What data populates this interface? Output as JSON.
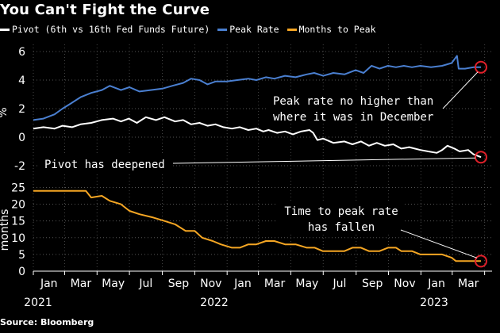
{
  "title": "You Can't Fight the Curve",
  "source": "Source: Bloomberg",
  "legend": [
    {
      "label": "Pivot (6th vs 16th Fed Funds Future)",
      "color": "#ffffff"
    },
    {
      "label": "Peak Rate",
      "color": "#4a7fd0"
    },
    {
      "label": "Months to Peak",
      "color": "#f5a623"
    }
  ],
  "chart_data": [
    {
      "type": "line",
      "panel": "top",
      "ylabel": "%",
      "ylim": [
        -2.5,
        6.5
      ],
      "yticks": [
        -2,
        0,
        2,
        4,
        6
      ],
      "x_start": "2021-01-01",
      "x_end": "2023-05-15",
      "series": [
        {
          "name": "Peak Rate",
          "color": "#4a7fd0",
          "points": [
            [
              "2021-01-01",
              1.2
            ],
            [
              "2021-01-20",
              1.3
            ],
            [
              "2021-02-10",
              1.6
            ],
            [
              "2021-02-25",
              2.0
            ],
            [
              "2021-03-10",
              2.3
            ],
            [
              "2021-03-31",
              2.8
            ],
            [
              "2021-04-20",
              3.1
            ],
            [
              "2021-05-10",
              3.3
            ],
            [
              "2021-05-25",
              3.6
            ],
            [
              "2021-06-15",
              3.3
            ],
            [
              "2021-07-01",
              3.5
            ],
            [
              "2021-07-20",
              3.2
            ],
            [
              "2021-08-10",
              3.3
            ],
            [
              "2021-09-01",
              3.4
            ],
            [
              "2021-09-20",
              3.6
            ],
            [
              "2021-10-10",
              3.8
            ],
            [
              "2021-10-25",
              4.1
            ],
            [
              "2021-11-10",
              4.0
            ],
            [
              "2021-11-25",
              3.7
            ],
            [
              "2021-12-10",
              3.9
            ],
            [
              "2021-12-31",
              3.9
            ],
            [
              "2022-01-20",
              4.0
            ],
            [
              "2022-02-10",
              4.1
            ],
            [
              "2022-02-25",
              4.0
            ],
            [
              "2022-03-15",
              4.2
            ],
            [
              "2022-03-31",
              4.1
            ],
            [
              "2022-04-20",
              4.3
            ],
            [
              "2022-05-10",
              4.2
            ],
            [
              "2022-05-31",
              4.4
            ],
            [
              "2022-06-14",
              4.5
            ],
            [
              "2022-07-01",
              4.3
            ],
            [
              "2022-07-20",
              4.5
            ],
            [
              "2022-08-10",
              4.4
            ],
            [
              "2022-08-31",
              4.7
            ],
            [
              "2022-09-15",
              4.5
            ],
            [
              "2022-09-30",
              5.0
            ],
            [
              "2022-10-15",
              4.8
            ],
            [
              "2022-10-31",
              5.0
            ],
            [
              "2022-11-15",
              4.9
            ],
            [
              "2022-11-30",
              5.0
            ],
            [
              "2022-12-15",
              4.9
            ],
            [
              "2022-12-31",
              5.0
            ],
            [
              "2023-01-20",
              4.9
            ],
            [
              "2023-02-10",
              5.0
            ],
            [
              "2023-02-28",
              5.2
            ],
            [
              "2023-03-08",
              5.6
            ],
            [
              "2023-03-10",
              5.7
            ],
            [
              "2023-03-13",
              4.8
            ],
            [
              "2023-03-25",
              4.8
            ],
            [
              "2023-04-10",
              4.9
            ],
            [
              "2023-04-24",
              4.9
            ]
          ]
        },
        {
          "name": "Pivot (6th vs 16th Fed Funds Future)",
          "color": "#ffffff",
          "points": [
            [
              "2021-01-01",
              0.6
            ],
            [
              "2021-01-20",
              0.7
            ],
            [
              "2021-02-10",
              0.6
            ],
            [
              "2021-02-25",
              0.8
            ],
            [
              "2021-03-15",
              0.7
            ],
            [
              "2021-03-31",
              0.9
            ],
            [
              "2021-04-20",
              1.0
            ],
            [
              "2021-05-10",
              1.2
            ],
            [
              "2021-05-31",
              1.3
            ],
            [
              "2021-06-15",
              1.1
            ],
            [
              "2021-06-30",
              1.3
            ],
            [
              "2021-07-15",
              1.0
            ],
            [
              "2021-08-01",
              1.4
            ],
            [
              "2021-08-20",
              1.2
            ],
            [
              "2021-09-05",
              1.4
            ],
            [
              "2021-09-25",
              1.1
            ],
            [
              "2021-10-10",
              1.2
            ],
            [
              "2021-10-25",
              0.9
            ],
            [
              "2021-11-10",
              1.0
            ],
            [
              "2021-11-25",
              0.8
            ],
            [
              "2021-12-10",
              0.9
            ],
            [
              "2021-12-25",
              0.7
            ],
            [
              "2022-01-10",
              0.6
            ],
            [
              "2022-01-25",
              0.7
            ],
            [
              "2022-02-10",
              0.5
            ],
            [
              "2022-02-25",
              0.6
            ],
            [
              "2022-03-10",
              0.4
            ],
            [
              "2022-03-20",
              0.5
            ],
            [
              "2022-04-05",
              0.3
            ],
            [
              "2022-04-20",
              0.4
            ],
            [
              "2022-05-05",
              0.2
            ],
            [
              "2022-05-20",
              0.4
            ],
            [
              "2022-06-05",
              0.5
            ],
            [
              "2022-06-12",
              0.3
            ],
            [
              "2022-06-20",
              -0.2
            ],
            [
              "2022-07-01",
              -0.1
            ],
            [
              "2022-07-20",
              -0.4
            ],
            [
              "2022-08-10",
              -0.3
            ],
            [
              "2022-08-25",
              -0.5
            ],
            [
              "2022-09-10",
              -0.3
            ],
            [
              "2022-09-25",
              -0.6
            ],
            [
              "2022-10-10",
              -0.4
            ],
            [
              "2022-10-25",
              -0.6
            ],
            [
              "2022-11-10",
              -0.5
            ],
            [
              "2022-11-25",
              -0.8
            ],
            [
              "2022-12-10",
              -0.7
            ],
            [
              "2022-12-31",
              -0.9
            ],
            [
              "2023-01-15",
              -1.0
            ],
            [
              "2023-01-31",
              -1.1
            ],
            [
              "2023-02-10",
              -0.9
            ],
            [
              "2023-02-20",
              -0.6
            ],
            [
              "2023-03-05",
              -0.8
            ],
            [
              "2023-03-15",
              -1.0
            ],
            [
              "2023-03-31",
              -0.9
            ],
            [
              "2023-04-10",
              -1.2
            ],
            [
              "2023-04-24",
              -1.4
            ]
          ]
        }
      ],
      "annotations": [
        {
          "lines": [
            "Peak rate no higher than",
            "where it was in December"
          ],
          "target": [
            "2023-04-24",
            4.9
          ]
        },
        {
          "lines": [
            "Pivot has deepened"
          ],
          "target": [
            "2023-04-24",
            -1.4
          ]
        }
      ]
    },
    {
      "type": "line",
      "panel": "bottom",
      "ylabel": "months",
      "ylim": [
        0,
        27
      ],
      "yticks": [
        0,
        5,
        10,
        15,
        20,
        25
      ],
      "x_start": "2021-01-01",
      "x_end": "2023-05-15",
      "xticks": [
        "Jan",
        "Mar",
        "May",
        "Jul",
        "Sep",
        "Nov",
        "Jan",
        "Mar",
        "May"
      ],
      "xtick_dates": [
        "2021-01-01",
        "2021-03-01",
        "2021-05-01",
        "2021-07-01",
        "2021-09-01",
        "2021-11-01",
        "2022-01-01",
        "2022-03-01",
        "2022-05-01"
      ],
      "year_labels": [
        {
          "text": "2021",
          "date": "2021-01-01"
        },
        {
          "text": "2022",
          "date": "2021-07-01"
        },
        {
          "text": "2023",
          "date": "2022-03-01"
        }
      ],
      "series": [
        {
          "name": "Months to Peak",
          "color": "#f5a623",
          "points": [
            [
              "2021-01-01",
              24
            ],
            [
              "2021-04-10",
              24
            ],
            [
              "2021-04-20",
              22
            ],
            [
              "2021-05-10",
              22.5
            ],
            [
              "2021-05-25",
              21
            ],
            [
              "2021-06-15",
              20
            ],
            [
              "2021-07-01",
              18
            ],
            [
              "2021-07-20",
              17
            ],
            [
              "2021-08-15",
              16
            ],
            [
              "2021-09-05",
              15
            ],
            [
              "2021-09-25",
              14
            ],
            [
              "2021-10-15",
              12
            ],
            [
              "2021-11-01",
              12
            ],
            [
              "2021-11-15",
              10
            ],
            [
              "2021-12-05",
              9
            ],
            [
              "2021-12-20",
              8
            ],
            [
              "2022-01-10",
              7
            ],
            [
              "2022-01-25",
              7
            ],
            [
              "2022-02-10",
              8
            ],
            [
              "2022-02-25",
              8
            ],
            [
              "2022-03-15",
              9
            ],
            [
              "2022-03-31",
              9
            ],
            [
              "2022-04-20",
              8
            ],
            [
              "2022-05-10",
              8
            ],
            [
              "2022-05-31",
              7
            ],
            [
              "2022-06-15",
              7
            ],
            [
              "2022-06-30",
              6
            ],
            [
              "2022-07-20",
              6
            ],
            [
              "2022-08-10",
              6
            ],
            [
              "2022-08-25",
              7
            ],
            [
              "2022-09-10",
              7
            ],
            [
              "2022-09-25",
              6
            ],
            [
              "2022-10-15",
              6
            ],
            [
              "2022-10-31",
              7
            ],
            [
              "2022-11-15",
              7
            ],
            [
              "2022-11-25",
              6
            ],
            [
              "2022-12-15",
              6
            ],
            [
              "2022-12-31",
              5
            ],
            [
              "2023-01-20",
              5
            ],
            [
              "2023-02-10",
              5
            ],
            [
              "2023-02-28",
              4
            ],
            [
              "2023-03-08",
              3
            ],
            [
              "2023-03-31",
              3
            ],
            [
              "2023-04-24",
              3
            ]
          ]
        }
      ],
      "annotations": [
        {
          "lines": [
            "Time to peak rate",
            "has fallen"
          ],
          "target": [
            "2023-04-24",
            3
          ]
        }
      ]
    }
  ]
}
